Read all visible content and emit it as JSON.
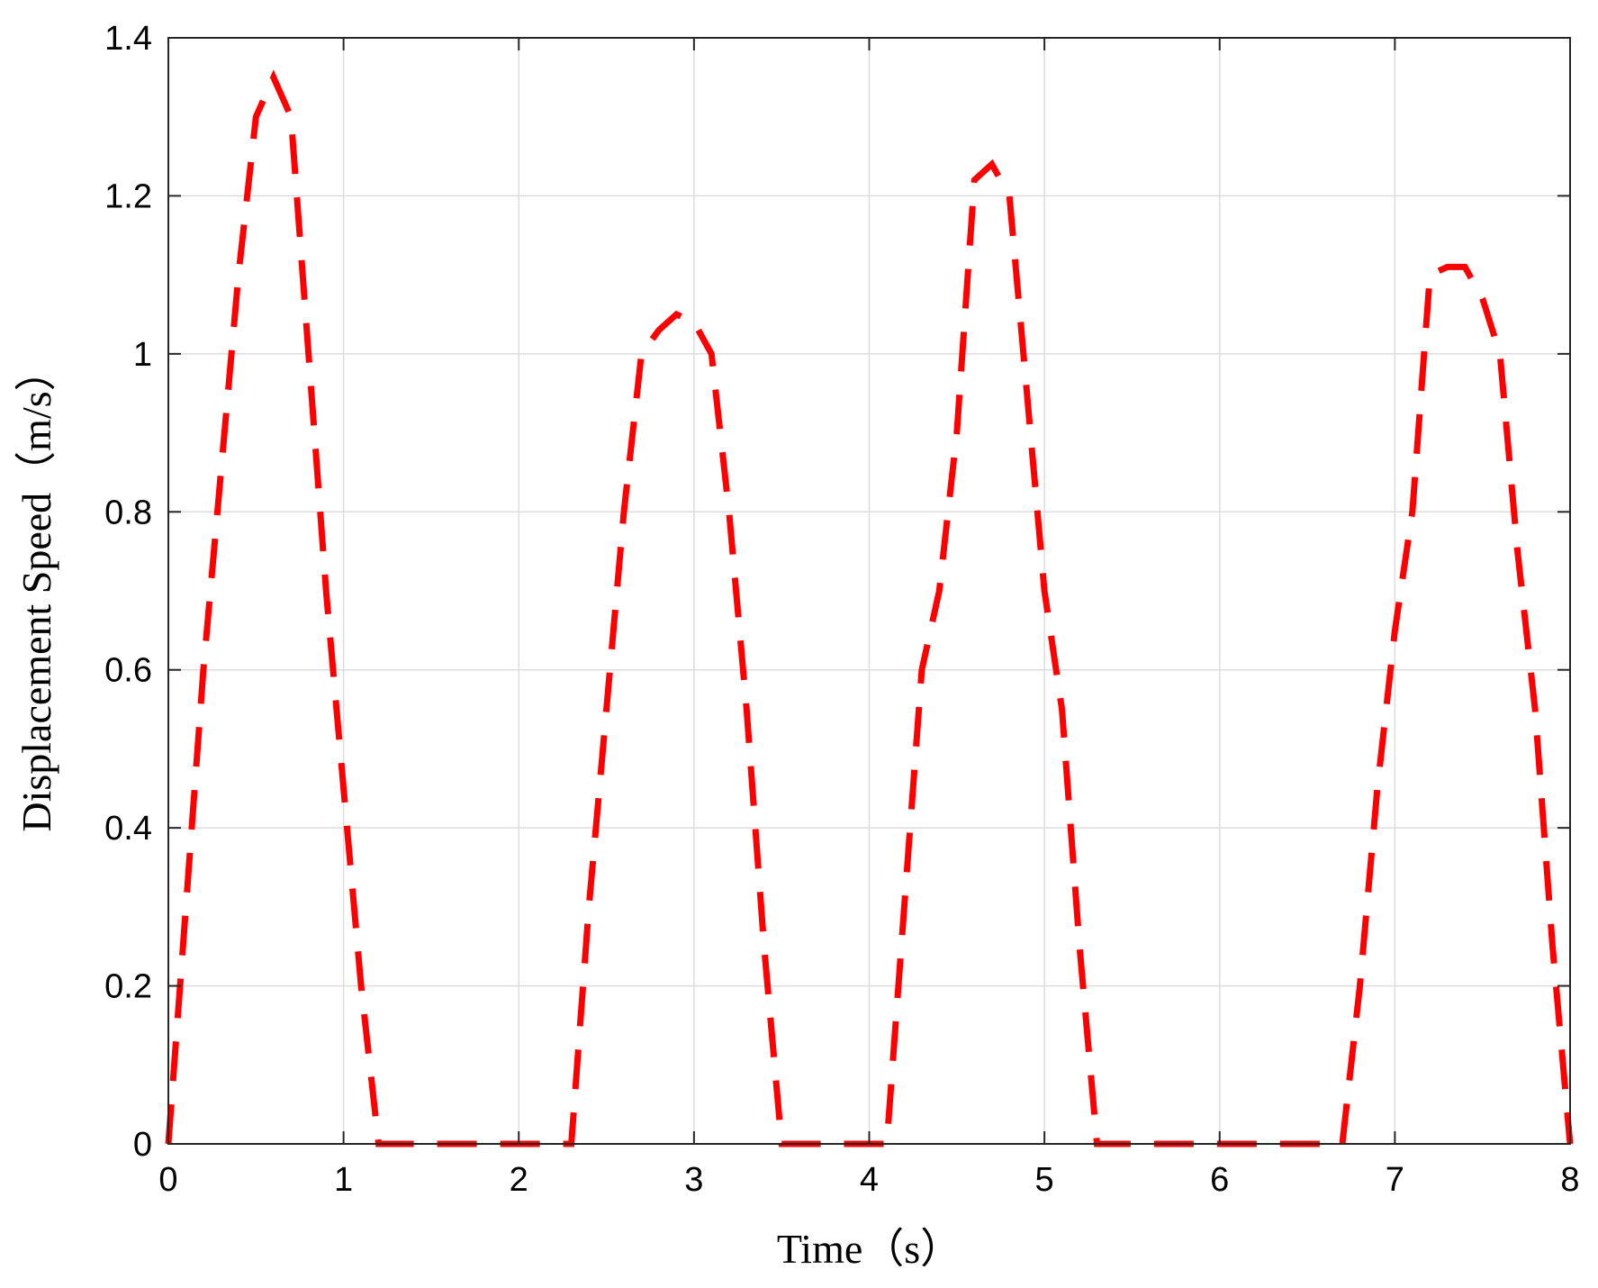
{
  "chart_data": {
    "type": "line",
    "title": "",
    "xlabel": "Time（s）",
    "ylabel": "Displacement Speed（m/s）",
    "xlim": [
      0,
      8
    ],
    "ylim": [
      0,
      1.4
    ],
    "xticks": [
      "0",
      "1",
      "2",
      "3",
      "4",
      "5",
      "6",
      "7",
      "8"
    ],
    "yticks": [
      "0",
      "0.2",
      "0.4",
      "0.6",
      "0.8",
      "1",
      "1.2",
      "1.4"
    ],
    "grid": true,
    "legend": "none",
    "series": [
      {
        "color": "#ff0000",
        "line_style": "dashed",
        "x": [
          0,
          0.1,
          0.2,
          0.3,
          0.4,
          0.5,
          0.6,
          0.7,
          0.8,
          0.9,
          1.0,
          1.1,
          1.2,
          1.4,
          1.6,
          1.8,
          2.0,
          2.2,
          2.3,
          2.4,
          2.5,
          2.6,
          2.7,
          2.8,
          2.9,
          3.0,
          3.1,
          3.2,
          3.3,
          3.4,
          3.5,
          3.6,
          3.8,
          4.0,
          4.1,
          4.2,
          4.3,
          4.4,
          4.5,
          4.6,
          4.7,
          4.8,
          4.9,
          5.0,
          5.1,
          5.2,
          5.3,
          5.5,
          5.7,
          5.9,
          6.1,
          6.3,
          6.5,
          6.7,
          6.8,
          6.9,
          7.0,
          7.1,
          7.2,
          7.3,
          7.4,
          7.5,
          7.6,
          7.7,
          7.8,
          7.9,
          8.0
        ],
        "y": [
          0,
          0.3,
          0.6,
          0.85,
          1.1,
          1.3,
          1.35,
          1.3,
          1.0,
          0.7,
          0.45,
          0.2,
          0,
          0,
          0,
          0,
          0,
          0,
          0,
          0.3,
          0.55,
          0.8,
          1.0,
          1.03,
          1.05,
          1.04,
          1.0,
          0.8,
          0.55,
          0.25,
          0,
          0,
          0,
          0,
          0,
          0.3,
          0.6,
          0.7,
          0.9,
          1.22,
          1.24,
          1.2,
          0.95,
          0.7,
          0.55,
          0.25,
          0,
          0,
          0,
          0,
          0,
          0,
          0,
          0,
          0.2,
          0.45,
          0.65,
          0.8,
          1.1,
          1.11,
          1.11,
          1.07,
          1.0,
          0.75,
          0.55,
          0.25,
          0
        ]
      }
    ]
  }
}
